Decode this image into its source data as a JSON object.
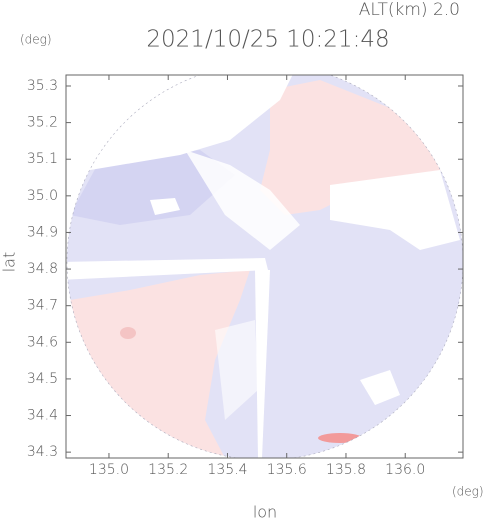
{
  "chart_data": {
    "type": "radar-map",
    "title": "2021/10/25 10:21:48",
    "subtitle": "ALT(km) 2.0",
    "x_label": "lon",
    "y_label": "lat",
    "x_unit": "(deg)",
    "y_unit": "(deg)",
    "xlim": [
      134.855,
      136.195
    ],
    "ylim": [
      34.284,
      35.33
    ],
    "xticks": [
      {
        "value": 135,
        "label": "135.0"
      },
      135.2,
      135.4,
      135.6,
      135.8,
      {
        "value": 136,
        "label": "136.0"
      }
    ],
    "yticks": [
      34.3,
      34.4,
      34.5,
      34.6,
      34.7,
      34.8,
      34.9,
      {
        "value": 35,
        "label": "35.0"
      },
      35.1,
      35.2,
      35.3
    ]
  }
}
